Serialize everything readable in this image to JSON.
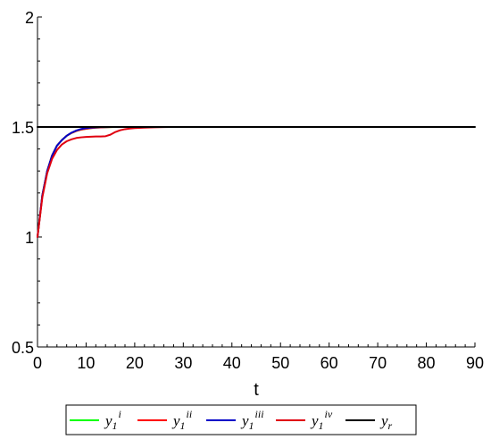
{
  "chart_data": {
    "type": "line",
    "title": "",
    "xlabel": "t",
    "ylabel": "",
    "xlim": [
      0,
      90
    ],
    "ylim": [
      0.5,
      2
    ],
    "x_ticks": [
      "0",
      "10",
      "20",
      "30",
      "40",
      "50",
      "60",
      "70",
      "80",
      "90"
    ],
    "y_ticks": [
      "0.5",
      "1",
      "1.5",
      "2"
    ],
    "grid": false,
    "legend_position": "bottom",
    "series": [
      {
        "name": "y1 i",
        "label_main": "y",
        "label_sub": "1",
        "label_sup": "i",
        "color": "#00ff00",
        "x": [
          0,
          1,
          2,
          3,
          4,
          5,
          6,
          7,
          8,
          9,
          10,
          11,
          12,
          13,
          14,
          15,
          16,
          18,
          20,
          22,
          25,
          28,
          30
        ],
        "y": [
          1.0,
          1.19,
          1.3,
          1.37,
          1.415,
          1.44,
          1.46,
          1.473,
          1.482,
          1.488,
          1.492,
          1.495,
          1.497,
          1.498,
          1.499,
          1.4995,
          1.5,
          1.5,
          1.5,
          1.5,
          1.5,
          1.5,
          1.5
        ]
      },
      {
        "name": "y1 ii",
        "label_main": "y",
        "label_sub": "1",
        "label_sup": "ii",
        "color": "#ff0000",
        "x": [
          0,
          1,
          2,
          3,
          4,
          5,
          6,
          7,
          8,
          9,
          10,
          11,
          12,
          13,
          14,
          15,
          16,
          18,
          20,
          22,
          25,
          28,
          30
        ],
        "y": [
          1.0,
          1.19,
          1.3,
          1.37,
          1.415,
          1.44,
          1.46,
          1.473,
          1.482,
          1.488,
          1.492,
          1.495,
          1.497,
          1.498,
          1.499,
          1.4995,
          1.5,
          1.5,
          1.5,
          1.5,
          1.5,
          1.5,
          1.5
        ]
      },
      {
        "name": "y1 iii",
        "label_main": "y",
        "label_sub": "1",
        "label_sup": "iii",
        "color": "#0000c8",
        "x": [
          0,
          1,
          2,
          3,
          4,
          5,
          6,
          7,
          8,
          9,
          10,
          11,
          12,
          13,
          14,
          15,
          16,
          18,
          20,
          22,
          25,
          28,
          30
        ],
        "y": [
          1.0,
          1.19,
          1.3,
          1.37,
          1.415,
          1.44,
          1.46,
          1.474,
          1.484,
          1.491,
          1.495,
          1.497,
          1.4985,
          1.4993,
          1.4997,
          1.5,
          1.5,
          1.5,
          1.5,
          1.5,
          1.5,
          1.5,
          1.5
        ]
      },
      {
        "name": "y1 iv",
        "label_main": "y",
        "label_sub": "1",
        "label_sup": "iv",
        "color": "#e0000f",
        "x": [
          0,
          1,
          2,
          3,
          4,
          5,
          6,
          7,
          8,
          9,
          10,
          11,
          12,
          13,
          14,
          15,
          16,
          17,
          18,
          19,
          20,
          22,
          24,
          26,
          28,
          30
        ],
        "y": [
          1.0,
          1.18,
          1.29,
          1.355,
          1.395,
          1.42,
          1.435,
          1.444,
          1.45,
          1.453,
          1.455,
          1.456,
          1.457,
          1.457,
          1.458,
          1.465,
          1.477,
          1.485,
          1.49,
          1.493,
          1.495,
          1.497,
          1.4985,
          1.4993,
          1.4998,
          1.5
        ]
      },
      {
        "name": "yr",
        "label_main": "y",
        "label_sub": "r",
        "label_sup": "",
        "color": "#000000",
        "x": [
          0,
          90
        ],
        "y": [
          1.5,
          1.5
        ]
      }
    ]
  }
}
